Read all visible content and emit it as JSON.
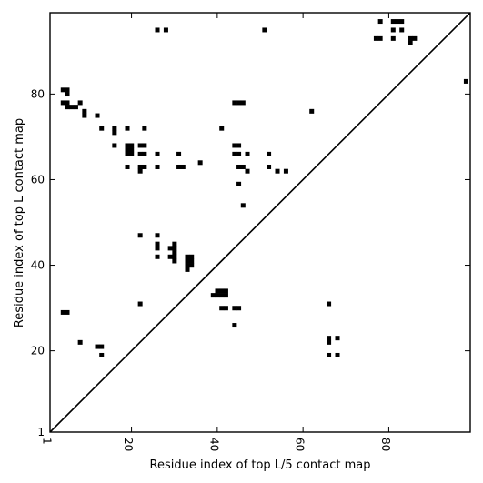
{
  "chart_data": {
    "type": "heatmap",
    "title": "",
    "xlabel": "Residue index of top L/5 contact map",
    "ylabel": "Residue index of top L contact map",
    "xlim": [
      1,
      99
    ],
    "ylim": [
      1,
      99
    ],
    "x_ticks": [
      {
        "value": 1,
        "label": "1"
      },
      {
        "value": 20,
        "label": "20"
      },
      {
        "value": 40,
        "label": "40"
      },
      {
        "value": 60,
        "label": "60"
      },
      {
        "value": 80,
        "label": "80"
      }
    ],
    "y_ticks": [
      {
        "value": 1,
        "label": "1"
      },
      {
        "value": 20,
        "label": "20"
      },
      {
        "value": 40,
        "label": "40"
      },
      {
        "value": 60,
        "label": "60"
      },
      {
        "value": 80,
        "label": "80"
      }
    ],
    "diagonal": [
      [
        1,
        1
      ],
      [
        99,
        99
      ]
    ],
    "cell_color": "#000000",
    "background": "#ffffff",
    "contacts": [
      [
        4,
        81
      ],
      [
        5,
        81
      ],
      [
        5,
        80
      ],
      [
        4,
        78
      ],
      [
        5,
        78
      ],
      [
        5,
        77
      ],
      [
        6,
        77
      ],
      [
        7,
        77
      ],
      [
        8,
        78
      ],
      [
        9,
        76
      ],
      [
        9,
        75
      ],
      [
        12,
        75
      ],
      [
        13,
        72
      ],
      [
        16,
        72
      ],
      [
        16,
        71
      ],
      [
        16,
        68
      ],
      [
        19,
        72
      ],
      [
        23,
        72
      ],
      [
        19,
        68
      ],
      [
        20,
        68
      ],
      [
        19,
        67
      ],
      [
        20,
        67
      ],
      [
        19,
        66
      ],
      [
        20,
        66
      ],
      [
        22,
        68
      ],
      [
        23,
        68
      ],
      [
        22,
        66
      ],
      [
        23,
        66
      ],
      [
        26,
        66
      ],
      [
        19,
        63
      ],
      [
        22,
        63
      ],
      [
        23,
        63
      ],
      [
        22,
        62
      ],
      [
        26,
        63
      ],
      [
        31,
        66
      ],
      [
        31,
        63
      ],
      [
        32,
        63
      ],
      [
        36,
        64
      ],
      [
        41,
        72
      ],
      [
        44,
        78
      ],
      [
        45,
        78
      ],
      [
        46,
        78
      ],
      [
        44,
        68
      ],
      [
        45,
        68
      ],
      [
        44,
        66
      ],
      [
        45,
        66
      ],
      [
        47,
        66
      ],
      [
        45,
        63
      ],
      [
        46,
        63
      ],
      [
        47,
        62
      ],
      [
        45,
        59
      ],
      [
        46,
        54
      ],
      [
        52,
        66
      ],
      [
        52,
        63
      ],
      [
        54,
        62
      ],
      [
        56,
        62
      ],
      [
        62,
        76
      ],
      [
        26,
        95
      ],
      [
        28,
        95
      ],
      [
        51,
        95
      ],
      [
        78,
        97
      ],
      [
        81,
        97
      ],
      [
        82,
        97
      ],
      [
        83,
        97
      ],
      [
        77,
        93
      ],
      [
        78,
        93
      ],
      [
        81,
        95
      ],
      [
        83,
        95
      ],
      [
        81,
        93
      ],
      [
        85,
        93
      ],
      [
        86,
        93
      ],
      [
        85,
        92
      ],
      [
        98,
        83
      ],
      [
        4,
        29
      ],
      [
        5,
        29
      ],
      [
        8,
        22
      ],
      [
        12,
        21
      ],
      [
        13,
        21
      ],
      [
        13,
        19
      ],
      [
        22,
        47
      ],
      [
        26,
        47
      ],
      [
        26,
        45
      ],
      [
        26,
        44
      ],
      [
        30,
        45
      ],
      [
        29,
        44
      ],
      [
        30,
        44
      ],
      [
        30,
        43
      ],
      [
        29,
        42
      ],
      [
        30,
        42
      ],
      [
        26,
        42
      ],
      [
        30,
        41
      ],
      [
        33,
        42
      ],
      [
        34,
        42
      ],
      [
        33,
        41
      ],
      [
        34,
        41
      ],
      [
        33,
        40
      ],
      [
        34,
        40
      ],
      [
        33,
        39
      ],
      [
        22,
        31
      ],
      [
        39,
        33
      ],
      [
        40,
        33
      ],
      [
        41,
        33
      ],
      [
        42,
        33
      ],
      [
        40,
        34
      ],
      [
        41,
        34
      ],
      [
        42,
        34
      ],
      [
        41,
        30
      ],
      [
        42,
        30
      ],
      [
        44,
        30
      ],
      [
        45,
        30
      ],
      [
        44,
        26
      ],
      [
        66,
        31
      ],
      [
        66,
        23
      ],
      [
        66,
        22
      ],
      [
        68,
        23
      ],
      [
        66,
        19
      ],
      [
        68,
        19
      ]
    ]
  }
}
